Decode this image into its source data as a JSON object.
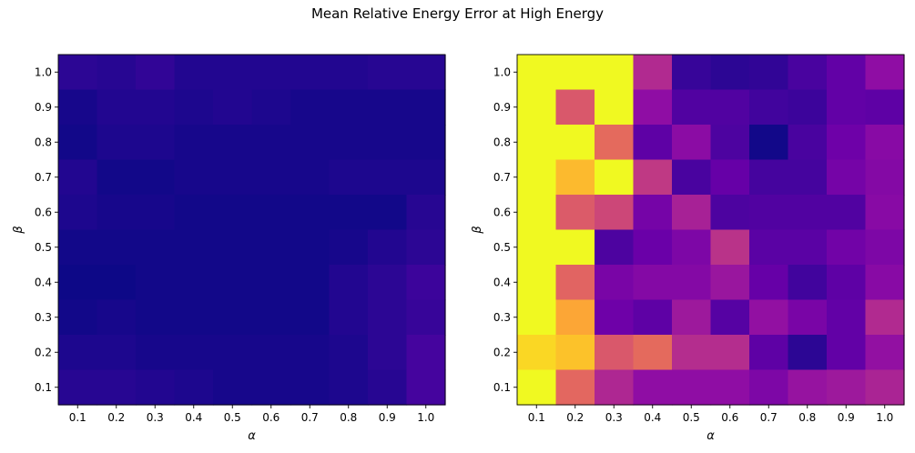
{
  "figure": {
    "title": "Mean Relative Energy Error at High Energy"
  },
  "colormap": {
    "name": "plasma",
    "stops": [
      "#0d0887",
      "#41049d",
      "#6a00a8",
      "#8f0da4",
      "#b12a90",
      "#cc4778",
      "#e16462",
      "#f2844b",
      "#fca636",
      "#fcce25",
      "#f0f921"
    ]
  },
  "chart_data": [
    {
      "type": "heatmap",
      "xlabel": "α",
      "ylabel": "β",
      "x": [
        "0.1",
        "0.2",
        "0.3",
        "0.4",
        "0.5",
        "0.6",
        "0.7",
        "0.8",
        "0.9",
        "1.0"
      ],
      "y": [
        "1.0",
        "0.9",
        "0.8",
        "0.7",
        "0.6",
        "0.5",
        "0.4",
        "0.3",
        "0.2",
        "0.1"
      ],
      "value_range": [
        0,
        1
      ],
      "z": [
        [
          0.06,
          0.05,
          0.07,
          0.04,
          0.04,
          0.04,
          0.04,
          0.04,
          0.05,
          0.05
        ],
        [
          0.02,
          0.04,
          0.04,
          0.03,
          0.04,
          0.03,
          0.02,
          0.02,
          0.02,
          0.02
        ],
        [
          0.01,
          0.03,
          0.03,
          0.02,
          0.02,
          0.02,
          0.02,
          0.02,
          0.02,
          0.02
        ],
        [
          0.04,
          0.01,
          0.01,
          0.02,
          0.02,
          0.02,
          0.02,
          0.03,
          0.03,
          0.03
        ],
        [
          0.03,
          0.02,
          0.02,
          0.01,
          0.01,
          0.01,
          0.01,
          0.01,
          0.01,
          0.05
        ],
        [
          0.01,
          0.01,
          0.01,
          0.01,
          0.01,
          0.01,
          0.01,
          0.02,
          0.04,
          0.06
        ],
        [
          0.0,
          0.0,
          0.01,
          0.01,
          0.01,
          0.01,
          0.01,
          0.04,
          0.06,
          0.09
        ],
        [
          0.01,
          0.02,
          0.01,
          0.01,
          0.01,
          0.01,
          0.01,
          0.04,
          0.06,
          0.08
        ],
        [
          0.03,
          0.03,
          0.02,
          0.02,
          0.02,
          0.02,
          0.02,
          0.03,
          0.06,
          0.11
        ],
        [
          0.05,
          0.05,
          0.04,
          0.03,
          0.02,
          0.02,
          0.02,
          0.03,
          0.05,
          0.11
        ]
      ]
    },
    {
      "type": "heatmap",
      "xlabel": "α",
      "ylabel": "β",
      "x": [
        "0.1",
        "0.2",
        "0.3",
        "0.4",
        "0.5",
        "0.6",
        "0.7",
        "0.8",
        "0.9",
        "1.0"
      ],
      "y": [
        "1.0",
        "0.9",
        "0.8",
        "0.7",
        "0.6",
        "0.5",
        "0.4",
        "0.3",
        "0.2",
        "0.1"
      ],
      "value_range": [
        0,
        1
      ],
      "z": [
        [
          1.0,
          1.0,
          1.0,
          0.4,
          0.08,
          0.06,
          0.07,
          0.12,
          0.18,
          0.3
        ],
        [
          1.0,
          0.56,
          1.0,
          0.3,
          0.14,
          0.14,
          0.1,
          0.09,
          0.18,
          0.17
        ],
        [
          1.0,
          1.0,
          0.62,
          0.17,
          0.29,
          0.13,
          0.01,
          0.12,
          0.21,
          0.28
        ],
        [
          1.0,
          0.85,
          1.0,
          0.45,
          0.12,
          0.19,
          0.11,
          0.11,
          0.23,
          0.27
        ],
        [
          1.0,
          0.57,
          0.5,
          0.23,
          0.37,
          0.13,
          0.14,
          0.14,
          0.14,
          0.28
        ],
        [
          1.0,
          1.0,
          0.13,
          0.2,
          0.25,
          0.43,
          0.16,
          0.16,
          0.22,
          0.25
        ],
        [
          1.0,
          0.6,
          0.24,
          0.27,
          0.27,
          0.33,
          0.19,
          0.1,
          0.17,
          0.28
        ],
        [
          1.0,
          0.8,
          0.21,
          0.17,
          0.34,
          0.15,
          0.31,
          0.24,
          0.18,
          0.4
        ],
        [
          0.92,
          0.87,
          0.56,
          0.62,
          0.41,
          0.41,
          0.17,
          0.06,
          0.18,
          0.31
        ],
        [
          1.0,
          0.61,
          0.39,
          0.3,
          0.3,
          0.3,
          0.25,
          0.32,
          0.34,
          0.38
        ]
      ]
    }
  ]
}
